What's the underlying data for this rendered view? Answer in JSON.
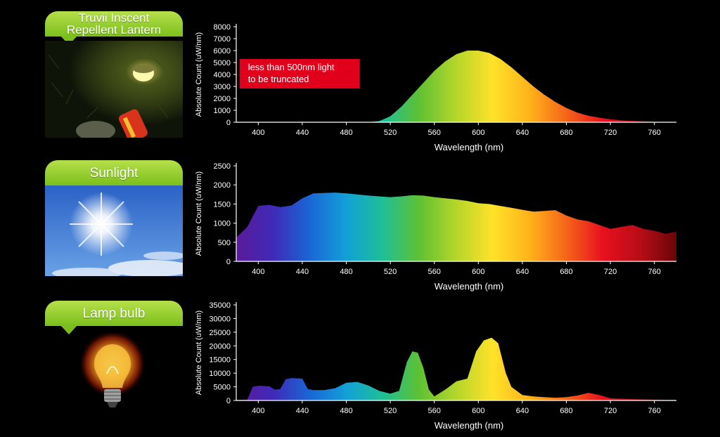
{
  "panels": [
    {
      "label_lines": [
        "Truvii  Inscent",
        "Repellent Lantern"
      ]
    },
    {
      "label_lines": [
        "Sunlight"
      ]
    },
    {
      "label_lines": [
        "Lamp bulb"
      ]
    }
  ],
  "chart_data": [
    {
      "type": "area",
      "ylabel": "Absolute Count  (uW/nm)",
      "xlabel": "Wavelength  (nm)",
      "xlim": [
        380,
        780
      ],
      "ylim": [
        0,
        8000
      ],
      "xticks": [
        400,
        440,
        480,
        520,
        560,
        600,
        640,
        680,
        720,
        760
      ],
      "yticks": [
        0,
        1000,
        2000,
        3000,
        4000,
        5000,
        6000,
        7000,
        8000
      ],
      "annotation": {
        "lines": [
          "less than 500nm light",
          "to be truncated"
        ],
        "color": "#e0001b"
      },
      "x": [
        500,
        510,
        520,
        530,
        540,
        550,
        560,
        570,
        580,
        590,
        600,
        610,
        620,
        630,
        640,
        650,
        660,
        670,
        680,
        690,
        700,
        710,
        720,
        730,
        740,
        750,
        760
      ],
      "y": [
        0,
        100,
        500,
        1300,
        2300,
        3300,
        4300,
        5100,
        5700,
        6000,
        6000,
        5800,
        5300,
        4600,
        3800,
        3000,
        2300,
        1700,
        1200,
        800,
        550,
        380,
        250,
        160,
        110,
        70,
        40
      ]
    },
    {
      "type": "area",
      "ylabel": "Absolute Count  (uW/nm)",
      "xlabel": "Wavelength  (nm)",
      "xlim": [
        380,
        780
      ],
      "ylim": [
        0,
        2500
      ],
      "xticks": [
        400,
        440,
        480,
        520,
        560,
        600,
        640,
        680,
        720,
        760
      ],
      "yticks": [
        0,
        500,
        1000,
        1500,
        2000,
        2500
      ],
      "x": [
        380,
        390,
        400,
        410,
        420,
        430,
        440,
        450,
        460,
        470,
        480,
        490,
        500,
        510,
        520,
        530,
        540,
        550,
        560,
        570,
        580,
        590,
        600,
        610,
        620,
        630,
        640,
        650,
        660,
        670,
        680,
        690,
        700,
        710,
        720,
        730,
        740,
        750,
        760,
        770,
        780
      ],
      "y": [
        620,
        900,
        1450,
        1480,
        1420,
        1460,
        1650,
        1780,
        1790,
        1800,
        1780,
        1750,
        1720,
        1700,
        1680,
        1700,
        1730,
        1720,
        1680,
        1650,
        1620,
        1580,
        1520,
        1500,
        1450,
        1400,
        1350,
        1300,
        1320,
        1340,
        1200,
        1100,
        1050,
        950,
        850,
        900,
        950,
        850,
        800,
        720,
        780
      ]
    },
    {
      "type": "area",
      "ylabel": "Absolute Count  (uW/nm)",
      "xlabel": "Wavelength  (nm)",
      "xlim": [
        380,
        780
      ],
      "ylim": [
        0,
        35000
      ],
      "xticks": [
        400,
        440,
        480,
        520,
        560,
        600,
        640,
        680,
        720,
        760
      ],
      "yticks": [
        0,
        5000,
        10000,
        15000,
        20000,
        25000,
        30000,
        35000
      ],
      "x": [
        380,
        390,
        395,
        400,
        410,
        415,
        420,
        425,
        430,
        440,
        445,
        450,
        460,
        470,
        480,
        490,
        500,
        510,
        520,
        528,
        535,
        540,
        545,
        550,
        555,
        560,
        570,
        580,
        590,
        598,
        605,
        612,
        618,
        625,
        630,
        640,
        650,
        660,
        670,
        680,
        690,
        700,
        710,
        720,
        740,
        760,
        780
      ],
      "y": [
        200,
        300,
        5000,
        5400,
        5200,
        4000,
        4200,
        7800,
        8200,
        8000,
        4200,
        3800,
        3800,
        4500,
        6500,
        6800,
        5500,
        3500,
        2500,
        3500,
        14000,
        18000,
        17500,
        12000,
        4000,
        1500,
        4000,
        7000,
        8000,
        18000,
        22000,
        23000,
        21000,
        10000,
        5000,
        2000,
        1500,
        1200,
        1000,
        1200,
        1800,
        2800,
        2000,
        800,
        500,
        300,
        200
      ]
    }
  ],
  "spectrum_colors": [
    "#5b1a9a",
    "#3f2ab8",
    "#1a66d6",
    "#13a0d8",
    "#1fbf96",
    "#5fc132",
    "#b5d62a",
    "#ffe22a",
    "#ffb21a",
    "#f5651a",
    "#e8101e",
    "#b80d16",
    "#6a0608"
  ]
}
